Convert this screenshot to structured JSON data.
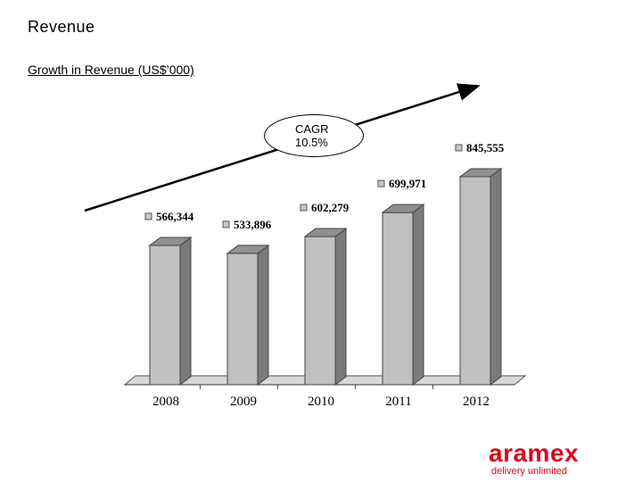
{
  "page": {
    "title": "Revenue",
    "subtitle": "Growth in Revenue (US$’000)"
  },
  "annotation": {
    "label": "CAGR",
    "value": "10.5%"
  },
  "logo": {
    "wordmark": "aramex",
    "tagline": "delivery unlimited"
  },
  "colors": {
    "bar_front": "#c0c0c0",
    "bar_side": "#7a7a7a",
    "bar_top": "#909090",
    "floor": "#d8d8d8",
    "brand": "#e2001a"
  },
  "chart_data": {
    "type": "bar",
    "categories": [
      "2008",
      "2009",
      "2010",
      "2011",
      "2012"
    ],
    "values": [
      566344,
      533896,
      602279,
      699971,
      845555
    ],
    "data_labels": [
      "566,344",
      "533,896",
      "602,279",
      "699,971",
      "845,555"
    ],
    "title": "Growth in Revenue (US$’000)",
    "xlabel": "",
    "ylabel": "",
    "ylim": [
      0,
      900000
    ],
    "grid": false,
    "legend": "none",
    "style": "3d-column"
  }
}
